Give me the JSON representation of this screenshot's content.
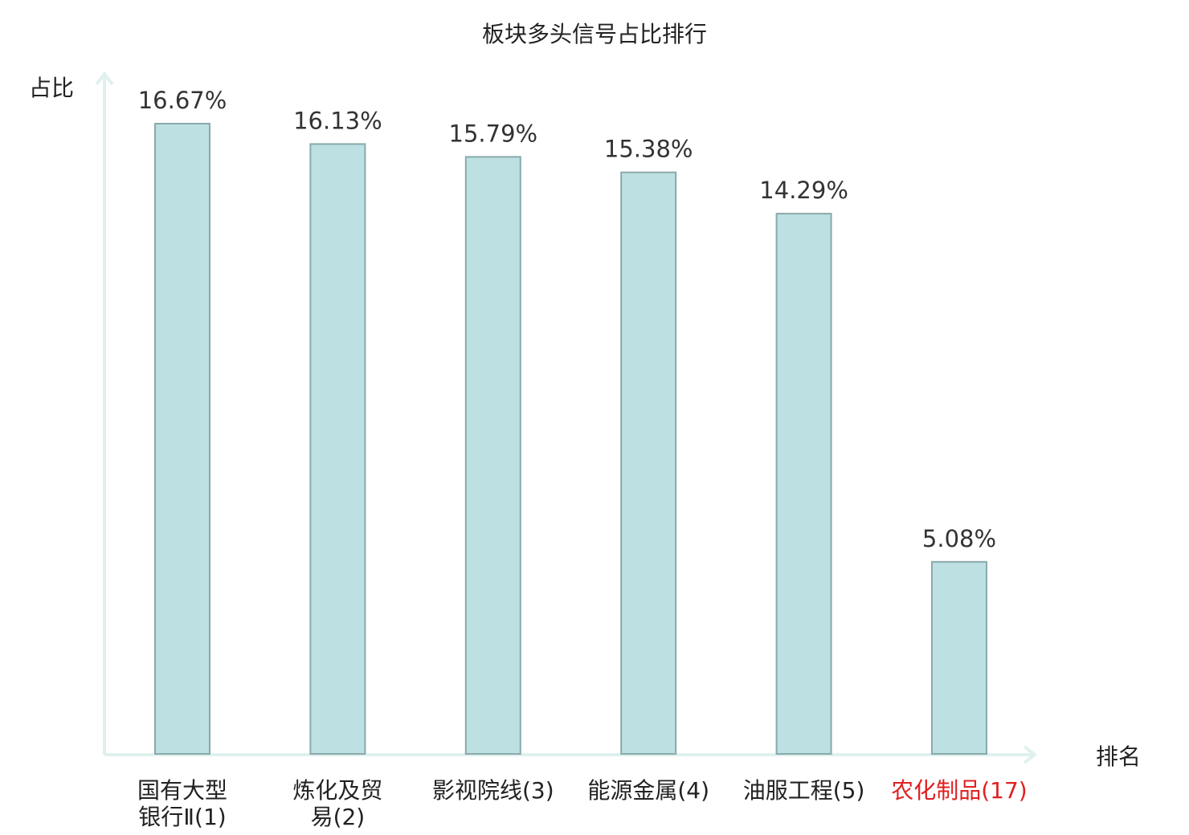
{
  "chart_data": {
    "type": "bar",
    "title": "板块多头信号占比排行",
    "ylabel": "占比",
    "xlabel": "排名",
    "ylim": [
      0,
      18
    ],
    "categories": [
      {
        "lines": [
          "国有大型",
          "银行Ⅱ(1)"
        ],
        "highlight": false
      },
      {
        "lines": [
          "炼化及贸",
          "易(2)"
        ],
        "highlight": false
      },
      {
        "lines": [
          "影视院线(3)"
        ],
        "highlight": false
      },
      {
        "lines": [
          "能源金属(4)"
        ],
        "highlight": false
      },
      {
        "lines": [
          "油服工程(5)"
        ],
        "highlight": false
      },
      {
        "lines": [
          "农化制品(17)"
        ],
        "highlight": true
      }
    ],
    "values": [
      16.67,
      16.13,
      15.79,
      15.38,
      14.29,
      5.08
    ],
    "value_labels": [
      "16.67%",
      "16.13%",
      "15.79%",
      "15.38%",
      "14.29%",
      "5.08%"
    ],
    "colors": {
      "bar_fill": "#bde0e3",
      "bar_stroke": "#8aa9ab",
      "axis": "#dff1ee",
      "text": "#333333",
      "highlight_text": "#e02020"
    },
    "grid": false,
    "legend": "none"
  }
}
